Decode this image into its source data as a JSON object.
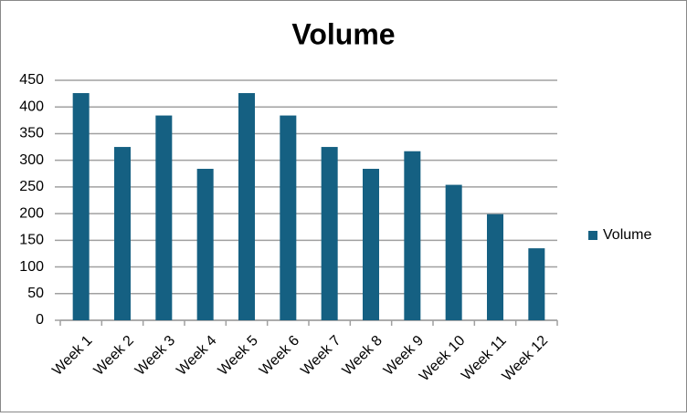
{
  "chart_data": {
    "type": "bar",
    "title": "Volume",
    "categories": [
      "Week 1",
      "Week 2",
      "Week 3",
      "Week 4",
      "Week 5",
      "Week 6",
      "Week 7",
      "Week 8",
      "Week 9",
      "Week 10",
      "Week 11",
      "Week 12"
    ],
    "series": [
      {
        "name": "Volume",
        "color": "#156082",
        "values": [
          426,
          325,
          384,
          284,
          426,
          384,
          325,
          284,
          317,
          254,
          199,
          135
        ]
      }
    ],
    "ylim": [
      0,
      450
    ],
    "yticks": [
      0,
      50,
      100,
      150,
      200,
      250,
      300,
      350,
      400,
      450
    ],
    "grid": true,
    "legend": "right"
  }
}
